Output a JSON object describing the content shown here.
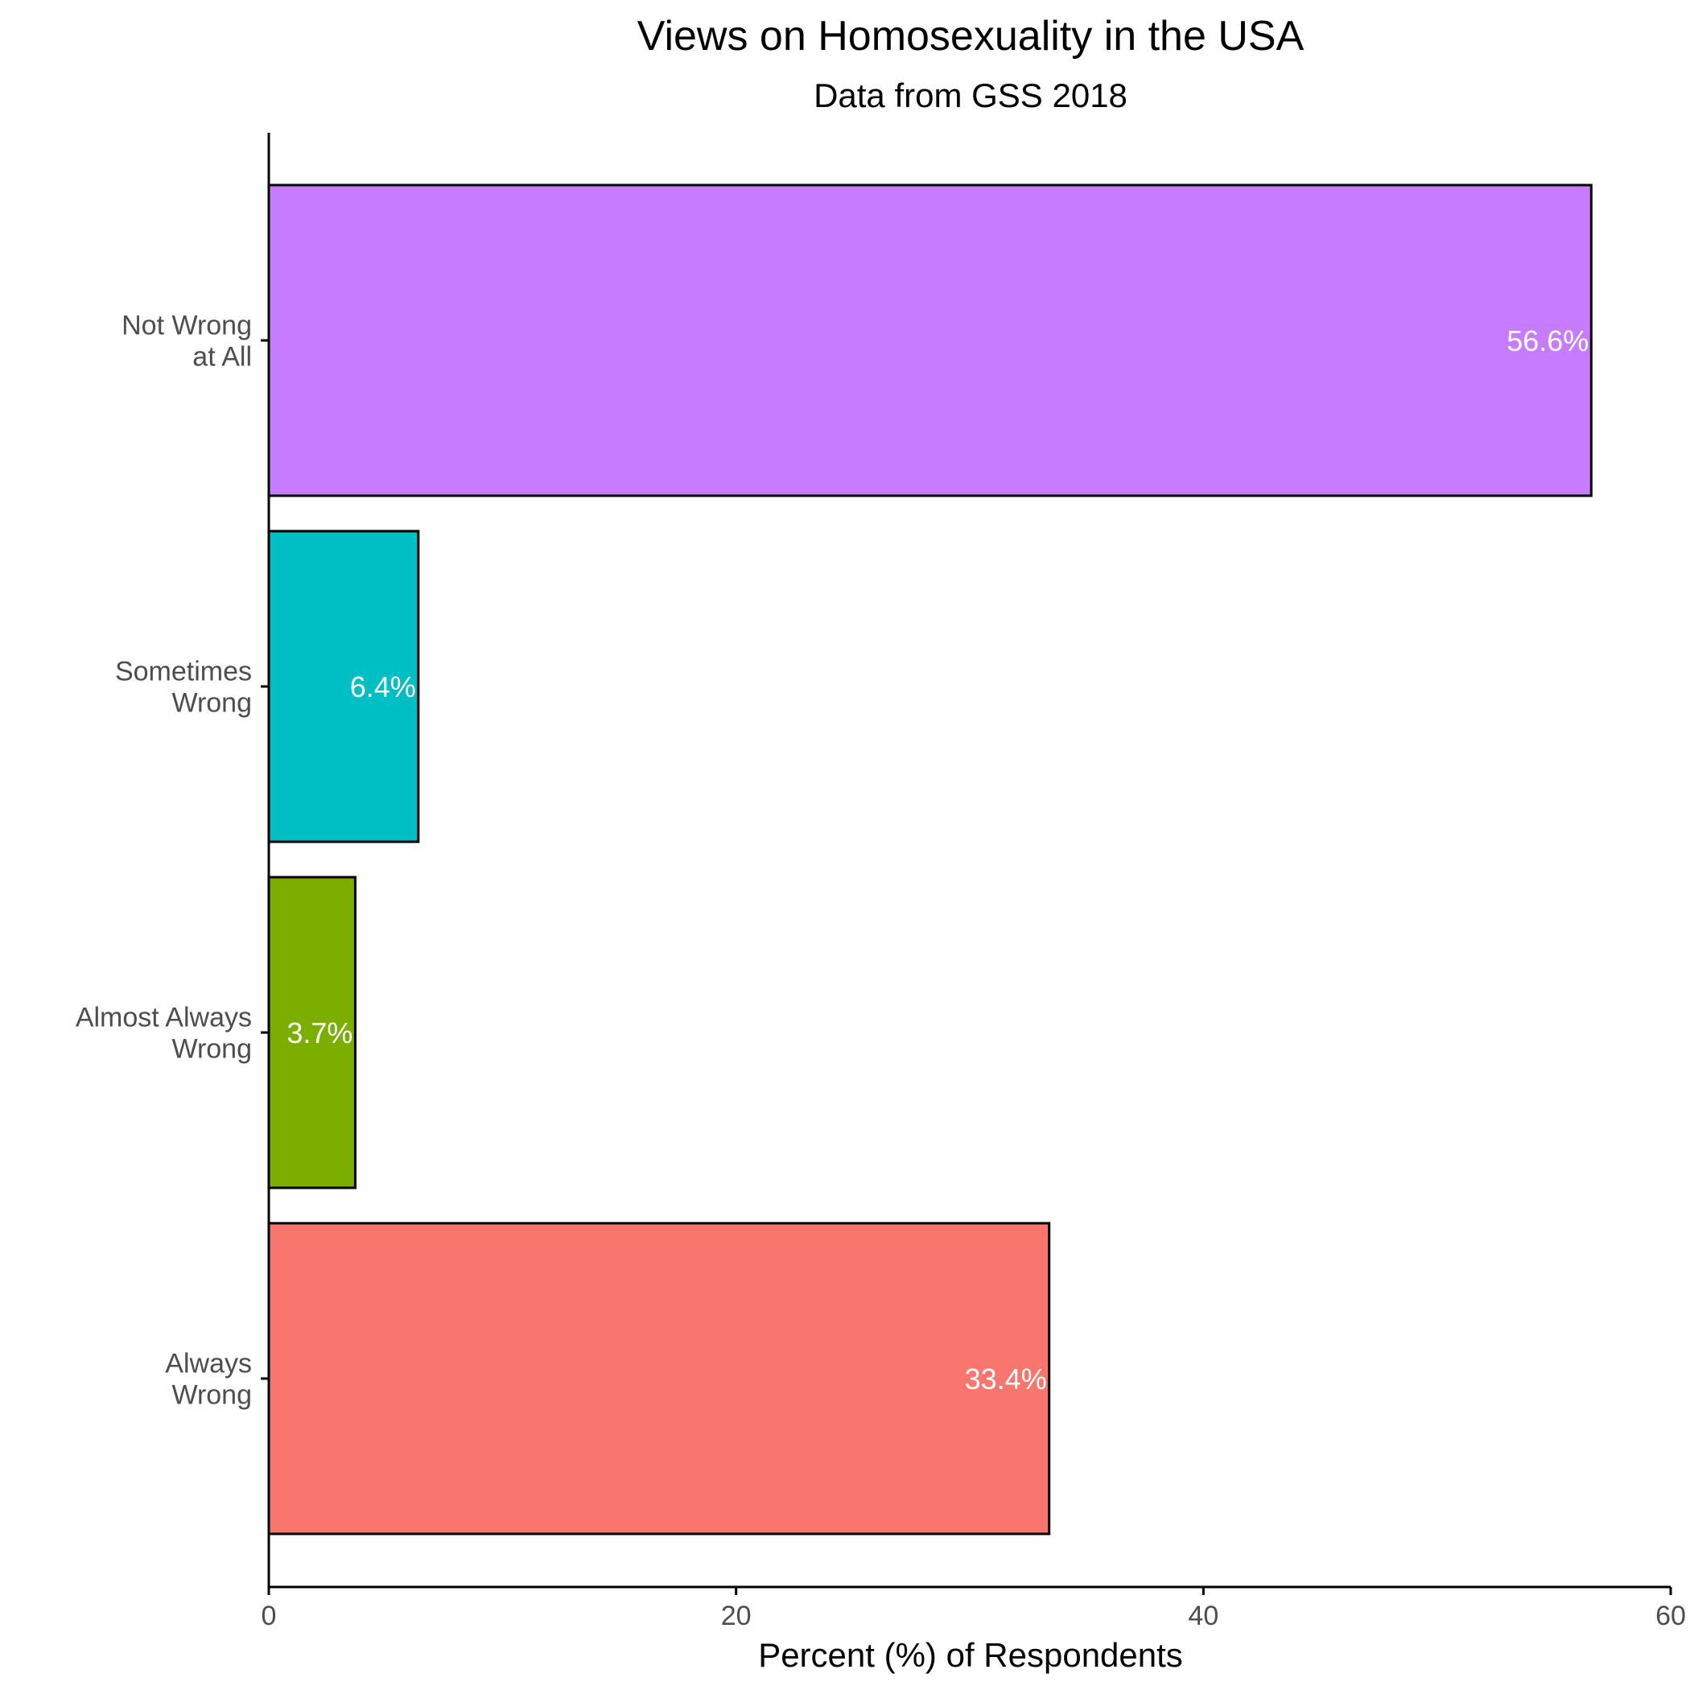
{
  "chart_data": {
    "type": "bar",
    "orientation": "horizontal",
    "title": "Views on Homosexuality in the USA",
    "subtitle": "Data from GSS 2018",
    "xlabel": "Percent (%) of Respondents",
    "ylabel": "",
    "xlim": [
      0,
      60
    ],
    "x_ticks": [
      0,
      20,
      40,
      60
    ],
    "categories": [
      [
        "Not Wrong",
        "at All"
      ],
      [
        "Sometimes",
        "Wrong"
      ],
      [
        "Almost Always",
        "Wrong"
      ],
      [
        "Always",
        "Wrong"
      ]
    ],
    "values": [
      56.6,
      6.4,
      3.7,
      33.4
    ],
    "data_labels": [
      "56.6%",
      "6.4%",
      "3.7%",
      "33.4%"
    ],
    "colors": [
      "#c77cff",
      "#00bfc4",
      "#7cae00",
      "#f8766d"
    ],
    "grid": false,
    "legend": "none"
  }
}
